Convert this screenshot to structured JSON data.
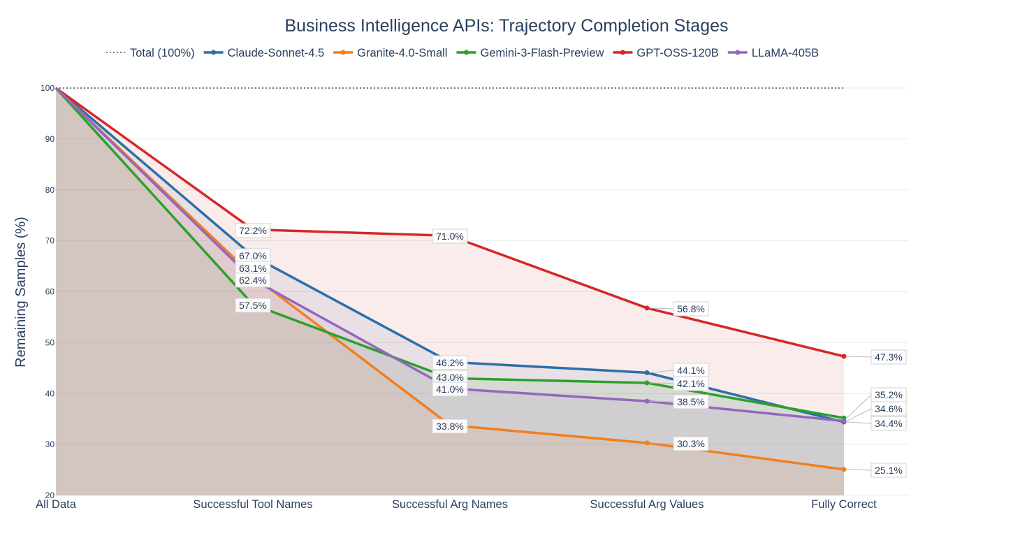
{
  "chart_data": {
    "type": "line",
    "title": "Business Intelligence APIs: Trajectory Completion Stages",
    "xlabel": "",
    "ylabel": "Remaining Samples (%)",
    "categories": [
      "All Data",
      "Successful Tool Names",
      "Successful Arg Names",
      "Successful Arg Values",
      "Fully Correct"
    ],
    "ylim": [
      20,
      100
    ],
    "yticks": [
      20,
      30,
      40,
      50,
      60,
      70,
      80,
      90,
      100
    ],
    "grid": true,
    "legend_position": "top",
    "reference_line": {
      "name": "Total (100%)",
      "value": 100,
      "color": "#777777",
      "style": "dotted"
    },
    "series": [
      {
        "name": "Claude-Sonnet-4.5",
        "color": "#2e6fa7",
        "values": [
          100,
          67.0,
          46.2,
          44.1,
          34.4
        ],
        "labels": [
          "",
          "67.0%",
          "46.2%",
          "44.1%",
          "34.4%"
        ]
      },
      {
        "name": "Granite-4.0-Small",
        "color": "#f07f1e",
        "values": [
          100,
          63.1,
          33.8,
          30.3,
          25.1
        ],
        "labels": [
          "",
          "63.1%",
          "33.8%",
          "30.3%",
          "25.1%"
        ]
      },
      {
        "name": "Gemini-3-Flash-Preview",
        "color": "#2ca02c",
        "values": [
          100,
          57.5,
          43.0,
          42.1,
          35.2
        ],
        "labels": [
          "",
          "57.5%",
          "43.0%",
          "42.1%",
          "35.2%"
        ]
      },
      {
        "name": "GPT-OSS-120B",
        "color": "#d62728",
        "values": [
          100,
          72.2,
          71.0,
          56.8,
          47.3
        ],
        "labels": [
          "",
          "72.2%",
          "71.0%",
          "56.8%",
          "47.3%"
        ]
      },
      {
        "name": "LLaMA-405B",
        "color": "#9467bd",
        "values": [
          100,
          62.4,
          41.0,
          38.5,
          34.6
        ],
        "labels": [
          "",
          "62.4%",
          "41.0%",
          "38.5%",
          "34.6%"
        ]
      }
    ]
  }
}
